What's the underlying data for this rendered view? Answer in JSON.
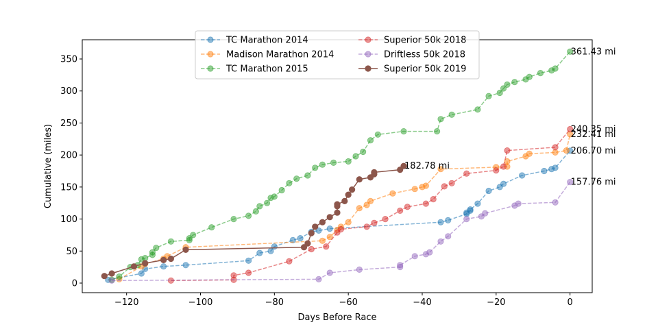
{
  "chart_data": {
    "type": "line",
    "title": "",
    "xlabel": "Days Before Race",
    "ylabel": "Cumulative (miles)",
    "xlim": [
      -132,
      6
    ],
    "ylim": [
      -15,
      380
    ],
    "xticks": [
      -120,
      -100,
      -80,
      -60,
      -40,
      -20,
      0
    ],
    "xtick_labels": [
      "−120",
      "−100",
      "−80",
      "−60",
      "−40",
      "−20",
      "0"
    ],
    "yticks": [
      0,
      50,
      100,
      150,
      200,
      250,
      300,
      350
    ],
    "ytick_labels": [
      "0",
      "50",
      "100",
      "150",
      "200",
      "250",
      "300",
      "350"
    ],
    "grid": false,
    "legend_position": "upper center",
    "series": [
      {
        "name": "TC Marathon 2014",
        "color": "#1f77b4",
        "linestyle": "dashed",
        "end_label": "206.70 mi",
        "points": [
          [
            -125,
            5
          ],
          [
            -116,
            15
          ],
          [
            -115,
            22
          ],
          [
            -110,
            26
          ],
          [
            -104,
            28
          ],
          [
            -87,
            35
          ],
          [
            -84,
            47
          ],
          [
            -81,
            50
          ],
          [
            -80,
            57
          ],
          [
            -75,
            67
          ],
          [
            -73,
            70
          ],
          [
            -70,
            80
          ],
          [
            -68,
            82
          ],
          [
            -65,
            85
          ],
          [
            -35,
            95
          ],
          [
            -33,
            98
          ],
          [
            -28,
            108
          ],
          [
            -28,
            110
          ],
          [
            -27,
            113
          ],
          [
            -27,
            115
          ],
          [
            -25,
            124
          ],
          [
            -22,
            144
          ],
          [
            -19,
            150
          ],
          [
            -18,
            155
          ],
          [
            -13,
            168
          ],
          [
            -7,
            175
          ],
          [
            -5,
            178
          ],
          [
            -4,
            180
          ],
          [
            0,
            206.7
          ]
        ]
      },
      {
        "name": "Madison Marathon 2014",
        "color": "#ff7f0e",
        "linestyle": "dashed",
        "end_label": "232.41 mi",
        "points": [
          [
            -122,
            6
          ],
          [
            -116,
            26
          ],
          [
            -115,
            30
          ],
          [
            -110,
            38
          ],
          [
            -109,
            42
          ],
          [
            -104,
            56
          ],
          [
            -67,
            66
          ],
          [
            -65,
            72
          ],
          [
            -63,
            83
          ],
          [
            -62,
            88
          ],
          [
            -60,
            95
          ],
          [
            -57,
            117
          ],
          [
            -55,
            122
          ],
          [
            -54,
            128
          ],
          [
            -48,
            140
          ],
          [
            -42,
            147
          ],
          [
            -40,
            150
          ],
          [
            -39,
            152
          ],
          [
            -35,
            178
          ],
          [
            -20,
            181
          ],
          [
            -17,
            182
          ],
          [
            -17,
            190
          ],
          [
            -12,
            198
          ],
          [
            -11,
            202
          ],
          [
            -4,
            204
          ],
          [
            -1,
            207
          ],
          [
            0,
            232.41
          ]
        ]
      },
      {
        "name": "TC Marathon 2015",
        "color": "#2ca02c",
        "linestyle": "dashed",
        "end_label": "361.43 mi",
        "points": [
          [
            -124,
            5
          ],
          [
            -122,
            10
          ],
          [
            -119,
            25
          ],
          [
            -117,
            28
          ],
          [
            -116,
            37
          ],
          [
            -115,
            39
          ],
          [
            -113,
            44
          ],
          [
            -113,
            48
          ],
          [
            -112,
            55
          ],
          [
            -108,
            65
          ],
          [
            -103,
            67
          ],
          [
            -103,
            70
          ],
          [
            -102,
            75
          ],
          [
            -97,
            87
          ],
          [
            -91,
            100
          ],
          [
            -87,
            105
          ],
          [
            -85,
            112
          ],
          [
            -84,
            120
          ],
          [
            -82,
            125
          ],
          [
            -81,
            133
          ],
          [
            -80,
            135
          ],
          [
            -78,
            145
          ],
          [
            -76,
            156
          ],
          [
            -74,
            163
          ],
          [
            -71,
            168
          ],
          [
            -69,
            180
          ],
          [
            -67,
            185
          ],
          [
            -64,
            188
          ],
          [
            -60,
            190
          ],
          [
            -58,
            198
          ],
          [
            -56,
            205
          ],
          [
            -54,
            223
          ],
          [
            -52,
            232
          ],
          [
            -45,
            237
          ],
          [
            -36,
            237
          ],
          [
            -35,
            256
          ],
          [
            -32,
            263
          ],
          [
            -25,
            271
          ],
          [
            -22,
            292
          ],
          [
            -19,
            297
          ],
          [
            -18,
            304
          ],
          [
            -17,
            310
          ],
          [
            -15,
            314
          ],
          [
            -12,
            318
          ],
          [
            -11,
            322
          ],
          [
            -8,
            328
          ],
          [
            -5,
            332
          ],
          [
            -4,
            335
          ],
          [
            0,
            361.43
          ]
        ]
      },
      {
        "name": "Superior 50k 2018",
        "color": "#d62728",
        "linestyle": "dashed",
        "end_label": "240.35 mi",
        "points": [
          [
            -108,
            4
          ],
          [
            -91,
            5
          ],
          [
            -91,
            12
          ],
          [
            -87,
            16
          ],
          [
            -76,
            34
          ],
          [
            -70,
            53
          ],
          [
            -66,
            57
          ],
          [
            -63,
            79
          ],
          [
            -62,
            84
          ],
          [
            -55,
            88
          ],
          [
            -53,
            94
          ],
          [
            -50,
            100
          ],
          [
            -46,
            113
          ],
          [
            -44,
            119
          ],
          [
            -39,
            124
          ],
          [
            -37,
            131
          ],
          [
            -34,
            151
          ],
          [
            -32,
            156
          ],
          [
            -28,
            171
          ],
          [
            -20,
            176
          ],
          [
            -18,
            182
          ],
          [
            -17,
            207
          ],
          [
            -4,
            212
          ],
          [
            0,
            240.35
          ]
        ]
      },
      {
        "name": "Driftless 50k 2018",
        "color": "#9467bd",
        "linestyle": "dashed",
        "end_label": "157.76 mi",
        "points": [
          [
            -124,
            4
          ],
          [
            -68,
            6
          ],
          [
            -65,
            16
          ],
          [
            -57,
            21
          ],
          [
            -46,
            25
          ],
          [
            -46,
            28
          ],
          [
            -42,
            42
          ],
          [
            -39,
            45
          ],
          [
            -38,
            48
          ],
          [
            -35,
            65
          ],
          [
            -33,
            73
          ],
          [
            -28,
            100
          ],
          [
            -24,
            104
          ],
          [
            -23,
            109
          ],
          [
            -15,
            121
          ],
          [
            -14,
            124
          ],
          [
            -4,
            126
          ],
          [
            0,
            157.76
          ]
        ]
      },
      {
        "name": "Superior 50k 2019",
        "color": "#8c564b",
        "linestyle": "solid",
        "end_label": "182.78 mi",
        "points": [
          [
            -126,
            11
          ],
          [
            -124,
            15
          ],
          [
            -118,
            26
          ],
          [
            -115,
            31
          ],
          [
            -110,
            36
          ],
          [
            -108,
            38
          ],
          [
            -104,
            52
          ],
          [
            -72,
            56
          ],
          [
            -71,
            62
          ],
          [
            -70,
            78
          ],
          [
            -69,
            88
          ],
          [
            -67,
            95
          ],
          [
            -65,
            103
          ],
          [
            -63,
            110
          ],
          [
            -63,
            120
          ],
          [
            -63,
            123
          ],
          [
            -61,
            128
          ],
          [
            -60,
            138
          ],
          [
            -59,
            146
          ],
          [
            -57,
            162
          ],
          [
            -54,
            165
          ],
          [
            -53,
            170
          ],
          [
            -53,
            173
          ],
          [
            -46,
            177
          ],
          [
            -45,
            182.78
          ]
        ]
      }
    ]
  }
}
